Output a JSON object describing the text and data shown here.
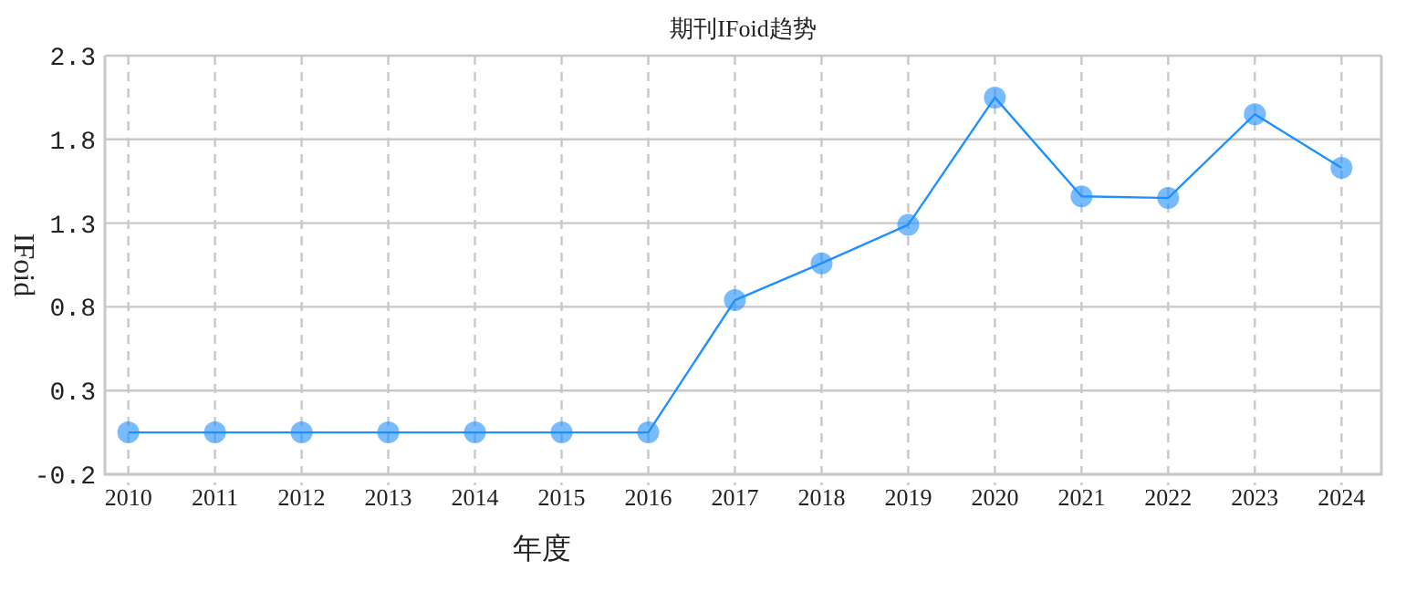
{
  "chart_data": {
    "type": "line",
    "title": "期刊IFoid趋势",
    "xlabel": "年度",
    "ylabel": "IFoid",
    "categories": [
      "2010",
      "2011",
      "2012",
      "2013",
      "2014",
      "2015",
      "2016",
      "2017",
      "2018",
      "2019",
      "2020",
      "2021",
      "2022",
      "2023",
      "2024"
    ],
    "series": [
      {
        "color": "#1e90ff",
        "values": [
          0.05,
          0.05,
          0.05,
          0.05,
          0.05,
          0.05,
          0.05,
          0.84,
          1.06,
          1.29,
          2.05,
          1.46,
          1.45,
          1.95,
          1.63
        ]
      }
    ],
    "ylim": [
      -0.2,
      2.3
    ],
    "yticks": [
      -0.2,
      0.3,
      0.8,
      1.3,
      1.8,
      2.3
    ],
    "grid": true,
    "marker": "circle",
    "line_style": "solid"
  }
}
